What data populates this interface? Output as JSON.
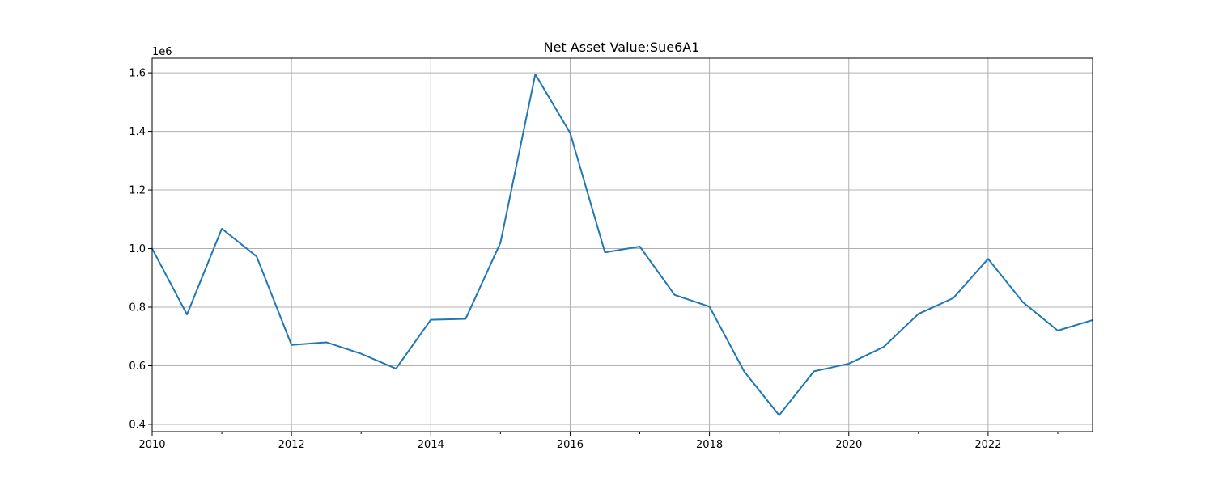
{
  "chart_data": {
    "type": "line",
    "title": "Net Asset Value:Sue6A1",
    "xlabel": "",
    "ylabel": "",
    "y_offset_label": "1e6",
    "x": [
      2010.0,
      2010.5,
      2011.0,
      2011.5,
      2012.0,
      2012.5,
      2013.0,
      2013.5,
      2014.0,
      2014.5,
      2015.0,
      2015.5,
      2016.0,
      2016.5,
      2017.0,
      2017.5,
      2018.0,
      2018.5,
      2019.0,
      2019.5,
      2020.0,
      2020.5,
      2021.0,
      2021.5,
      2022.0,
      2022.5,
      2023.0,
      2023.5
    ],
    "series": [
      {
        "values": [
          1000000,
          775000,
          1068000,
          973000,
          671000,
          680000,
          641000,
          590000,
          757000,
          760000,
          1020000,
          1595000,
          1395000,
          987000,
          1007000,
          842000,
          802000,
          580000,
          431000,
          581000,
          607000,
          664000,
          777000,
          831000,
          965000,
          817000,
          720000,
          756000
        ],
        "color": "#1f77b4"
      }
    ],
    "xlim": [
      2010,
      2023.5
    ],
    "ylim": [
      0.375,
      1.65
    ],
    "x_major_ticks": [
      2010,
      2012,
      2014,
      2016,
      2018,
      2020,
      2022
    ],
    "x_minor_ticks": [
      2011,
      2013,
      2015,
      2017,
      2019,
      2021,
      2023
    ],
    "x_tick_labels": [
      "2010",
      "2012",
      "2014",
      "2016",
      "2018",
      "2020",
      "2022"
    ],
    "y_ticks": [
      0.4,
      0.6,
      0.8,
      1.0,
      1.2,
      1.4,
      1.6
    ],
    "y_tick_labels": [
      "0.4",
      "0.6",
      "0.8",
      "1.0",
      "1.2",
      "1.4",
      "1.6"
    ],
    "grid": true,
    "legend": "none"
  }
}
